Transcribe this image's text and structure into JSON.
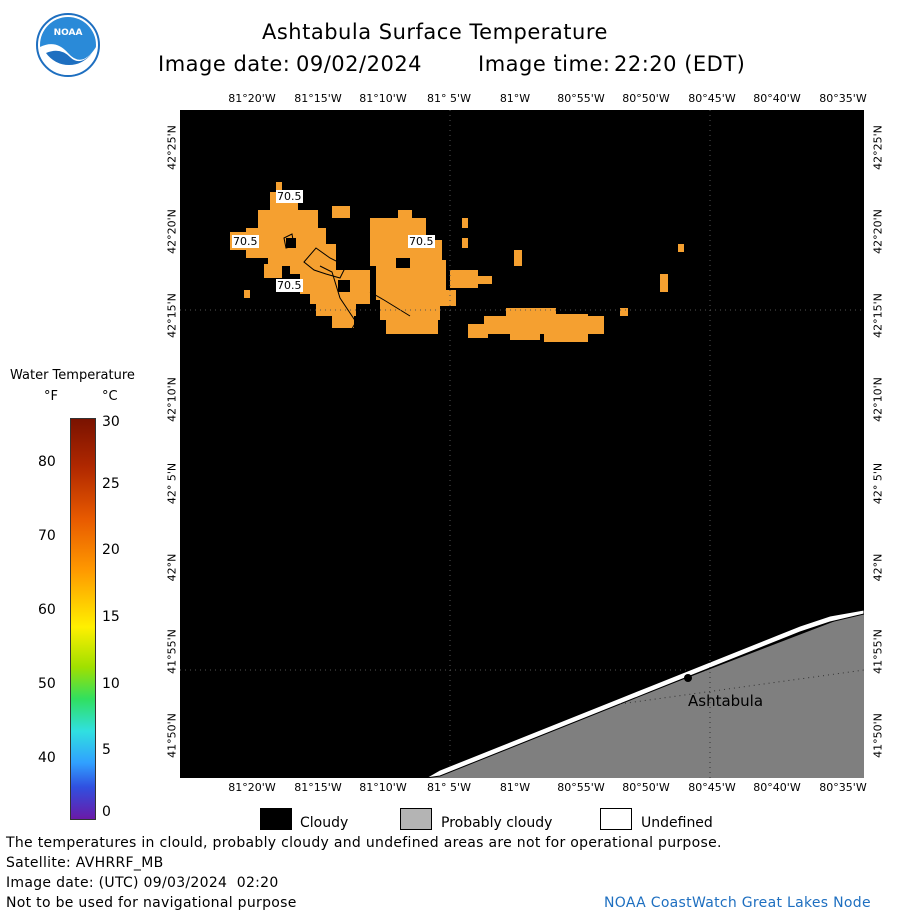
{
  "header": {
    "title": "Ashtabula Surface Temperature",
    "image_date_label": "Image date:",
    "image_date": "09/02/2024",
    "image_time_label": "Image time:",
    "image_time": "22:20 (EDT)"
  },
  "logo": {
    "text": "NOAA"
  },
  "map": {
    "lon_labels": [
      "81°20'W",
      "81°15'W",
      "81°10'W",
      "81° 5'W",
      "81°W",
      "80°55'W",
      "80°50'W",
      "80°45'W",
      "80°40'W",
      "80°35'W"
    ],
    "lat_labels": [
      "42°25'N",
      "42°20'N",
      "42°15'N",
      "42°10'N",
      "42° 5'N",
      "42°N",
      "41°55'N",
      "41°50'N"
    ],
    "place_label": "Ashtabula",
    "isotherm_labels": [
      "70.5",
      "70.5",
      "70.5",
      "70.5"
    ],
    "colors": {
      "cloud": "#000000",
      "water_70": "#f5a030",
      "land": "#7f7f7f",
      "undefined": "#ffffff"
    }
  },
  "colorbar": {
    "title": "Water Temperature",
    "unit_f": "°F",
    "unit_c": "°C",
    "f_ticks": [
      "80",
      "70",
      "60",
      "50",
      "40"
    ],
    "c_ticks": [
      "30",
      "25",
      "20",
      "15",
      "10",
      "5",
      "0"
    ]
  },
  "legend": {
    "cloudy": "Cloudy",
    "probably_cloudy": "Probably cloudy",
    "undefined": "Undefined"
  },
  "footer": {
    "disclaimer": "The temperatures in clould, probably cloudy and undefined areas are not for operational purpose.",
    "satellite": "Satellite: AVHRRF_MB",
    "utc_date": "Image date: (UTC) 09/03/2024  02:20",
    "nav_warning": "Not to be used for navigational purpose",
    "credit": "NOAA CoastWatch Great Lakes Node"
  }
}
